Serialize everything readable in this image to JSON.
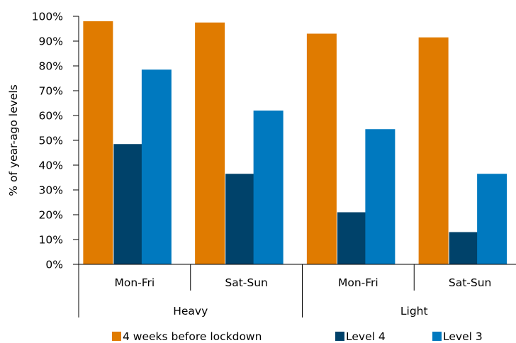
{
  "chart_data": {
    "type": "bar",
    "title": "",
    "ylabel": "% of year-ago levels",
    "xlabel": "",
    "ylim": [
      0,
      100
    ],
    "y_ticks": [
      "0%",
      "10%",
      "20%",
      "30%",
      "40%",
      "50%",
      "60%",
      "70%",
      "80%",
      "90%",
      "100%"
    ],
    "groups": [
      {
        "label": "Heavy",
        "categories": [
          "Mon-Fri",
          "Sat-Sun"
        ]
      },
      {
        "label": "Light",
        "categories": [
          "Mon-Fri",
          "Sat-Sun"
        ]
      }
    ],
    "categories": [
      "Mon-Fri",
      "Sat-Sun",
      "Mon-Fri",
      "Sat-Sun"
    ],
    "series": [
      {
        "name": "4 weeks before lockdown",
        "color": "#e07b00",
        "values": [
          98,
          97.5,
          93,
          91.5
        ]
      },
      {
        "name": "Level 4",
        "color": "#00426a",
        "values": [
          48.5,
          36.5,
          21,
          13
        ]
      },
      {
        "name": "Level 3",
        "color": "#0079bf",
        "values": [
          78.5,
          62,
          54.5,
          36.5
        ]
      }
    ],
    "grid": false,
    "legend_position": "bottom"
  }
}
